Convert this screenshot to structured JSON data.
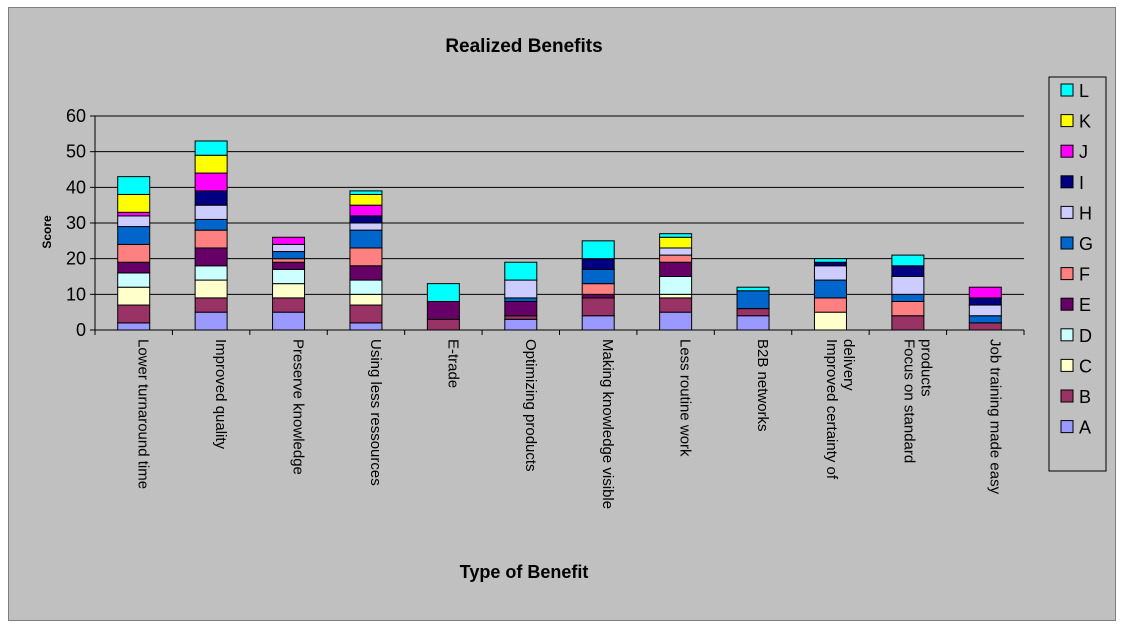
{
  "chart_data": {
    "type": "bar",
    "stacked": true,
    "title": "Realized Benefits",
    "xlabel": "Type of Benefit",
    "ylabel": "Score",
    "ylim": [
      0,
      60
    ],
    "yticks": [
      0,
      10,
      20,
      30,
      40,
      50,
      60
    ],
    "grid": true,
    "legend_position": "right",
    "categories": [
      "Lower turnaround time",
      "Improved quality",
      "Preserve knowledge",
      "Using less ressources",
      "E-trade",
      "Optimizing products",
      "Making knowledge visible",
      "Less routine work",
      "B2B networks",
      "Improved certainty of delivery",
      "Focus on standard products",
      "Job training made easy"
    ],
    "category_lines": [
      [
        "Lower turnaround time"
      ],
      [
        "Improved quality"
      ],
      [
        "Preserve knowledge"
      ],
      [
        "Using less ressources"
      ],
      [
        "E-trade"
      ],
      [
        "Optimizing products"
      ],
      [
        "Making knowledge visible"
      ],
      [
        "Less routine work"
      ],
      [
        "B2B networks"
      ],
      [
        "Improved certainty of",
        "delivery"
      ],
      [
        "Focus on standard",
        "products"
      ],
      [
        "Job training made easy"
      ]
    ],
    "series": [
      {
        "name": "A",
        "color": "#9999ff",
        "values": [
          2,
          5,
          5,
          2,
          0,
          3,
          4,
          5,
          4,
          0,
          0,
          0
        ]
      },
      {
        "name": "B",
        "color": "#993366",
        "values": [
          5,
          4,
          4,
          5,
          3,
          1,
          5,
          4,
          2,
          0,
          4,
          2
        ]
      },
      {
        "name": "C",
        "color": "#ffffcc",
        "values": [
          5,
          5,
          4,
          3,
          0,
          0,
          0,
          1,
          0,
          5,
          0,
          0
        ]
      },
      {
        "name": "D",
        "color": "#ccffff",
        "values": [
          4,
          4,
          4,
          4,
          0,
          0,
          0,
          5,
          0,
          0,
          0,
          0
        ]
      },
      {
        "name": "E",
        "color": "#660066",
        "values": [
          3,
          5,
          2,
          4,
          5,
          4,
          1,
          4,
          0,
          0,
          0,
          0
        ]
      },
      {
        "name": "F",
        "color": "#ff8080",
        "values": [
          5,
          5,
          1,
          5,
          0,
          0,
          3,
          2,
          0,
          4,
          4,
          0
        ]
      },
      {
        "name": "G",
        "color": "#0066cc",
        "values": [
          5,
          3,
          2,
          5,
          0,
          1,
          4,
          0,
          5,
          5,
          2,
          2
        ]
      },
      {
        "name": "H",
        "color": "#ccccff",
        "values": [
          3,
          4,
          2,
          2,
          0,
          5,
          0,
          2,
          0,
          4,
          5,
          3
        ]
      },
      {
        "name": "I",
        "color": "#000080",
        "values": [
          0,
          4,
          0,
          2,
          0,
          0,
          3,
          0,
          0,
          1,
          3,
          2
        ]
      },
      {
        "name": "J",
        "color": "#ff00ff",
        "values": [
          1,
          5,
          2,
          3,
          0,
          0,
          0,
          0,
          0,
          0,
          0,
          3
        ]
      },
      {
        "name": "K",
        "color": "#ffff00",
        "values": [
          5,
          5,
          0,
          3,
          0,
          0,
          0,
          3,
          0,
          0,
          0,
          0
        ]
      },
      {
        "name": "L",
        "color": "#00ffff",
        "values": [
          5,
          4,
          0,
          1,
          5,
          5,
          5,
          1,
          1,
          1,
          3,
          0
        ]
      }
    ]
  }
}
